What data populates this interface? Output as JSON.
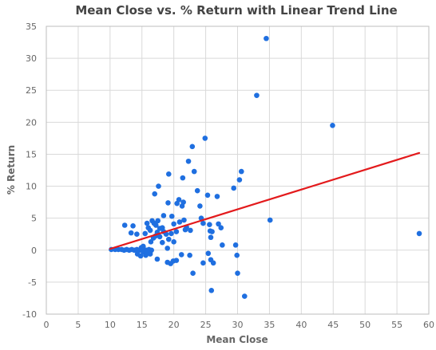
{
  "chart_data": {
    "type": "scatter",
    "title": "Mean Close vs. % Return with Linear Trend Line",
    "xlabel": "Mean Close",
    "ylabel": "% Return",
    "xlim": [
      0,
      60
    ],
    "ylim": [
      -10,
      35
    ],
    "xticks": [
      0,
      5,
      10,
      15,
      20,
      25,
      30,
      35,
      40,
      45,
      50,
      55,
      60
    ],
    "yticks": [
      -10,
      -5,
      0,
      5,
      10,
      15,
      20,
      25,
      30,
      35
    ],
    "grid": true,
    "colors": {
      "points": "#1f6fe0",
      "trend": "#e31a1c"
    },
    "trend_line": {
      "x": [
        10,
        58.5
      ],
      "y": [
        0.2,
        15.2
      ]
    },
    "points": [
      [
        10.2,
        0.1
      ],
      [
        10.8,
        0.1
      ],
      [
        11.3,
        0.1
      ],
      [
        11.8,
        0.1
      ],
      [
        12.2,
        0.0
      ],
      [
        12.6,
        0.1
      ],
      [
        13.0,
        0.0
      ],
      [
        13.4,
        0.1
      ],
      [
        13.8,
        0.0
      ],
      [
        14.2,
        0.1
      ],
      [
        14.6,
        0.0
      ],
      [
        15.0,
        0.0
      ],
      [
        15.3,
        0.1
      ],
      [
        15.7,
        0.0
      ],
      [
        16.1,
        0.1
      ],
      [
        16.5,
        0.0
      ],
      [
        14.3,
        -0.6
      ],
      [
        14.8,
        -0.9
      ],
      [
        15.2,
        -0.3
      ],
      [
        15.6,
        -0.8
      ],
      [
        15.9,
        -0.4
      ],
      [
        16.3,
        -0.6
      ],
      [
        12.3,
        3.9
      ],
      [
        13.3,
        2.7
      ],
      [
        13.6,
        3.8
      ],
      [
        14.2,
        2.5
      ],
      [
        15.5,
        2.6
      ],
      [
        15.8,
        4.2
      ],
      [
        16.0,
        3.5
      ],
      [
        16.3,
        3.1
      ],
      [
        16.6,
        4.6
      ],
      [
        16.9,
        4.2
      ],
      [
        17.2,
        3.9
      ],
      [
        17.5,
        4.6
      ],
      [
        17.8,
        3.4
      ],
      [
        18.2,
        3.5
      ],
      [
        16.4,
        1.3
      ],
      [
        16.8,
        1.9
      ],
      [
        17.1,
        2.2
      ],
      [
        17.4,
        2.8
      ],
      [
        17.8,
        2.1
      ],
      [
        18.2,
        1.2
      ],
      [
        18.4,
        2.9
      ],
      [
        18.8,
        2.5
      ],
      [
        19.2,
        1.7
      ],
      [
        19.6,
        2.6
      ],
      [
        20.0,
        1.3
      ],
      [
        20.4,
        2.9
      ],
      [
        17.0,
        8.8
      ],
      [
        17.6,
        10.0
      ],
      [
        18.4,
        5.4
      ],
      [
        19.1,
        7.4
      ],
      [
        19.2,
        11.9
      ],
      [
        19.7,
        5.3
      ],
      [
        20.0,
        4.1
      ],
      [
        20.5,
        7.3
      ],
      [
        20.8,
        7.9
      ],
      [
        21.3,
        6.9
      ],
      [
        21.5,
        7.5
      ],
      [
        21.6,
        4.7
      ],
      [
        21.4,
        11.3
      ],
      [
        21.8,
        3.2
      ],
      [
        22.3,
        13.9
      ],
      [
        22.6,
        3.1
      ],
      [
        22.9,
        16.2
      ],
      [
        23.2,
        12.3
      ],
      [
        23.7,
        9.3
      ],
      [
        24.1,
        6.9
      ],
      [
        24.3,
        5.0
      ],
      [
        24.6,
        4.2
      ],
      [
        24.9,
        17.5
      ],
      [
        25.3,
        8.6
      ],
      [
        25.6,
        4.0
      ],
      [
        25.7,
        3.0
      ],
      [
        26.0,
        2.9
      ],
      [
        25.8,
        2.0
      ],
      [
        26.8,
        8.4
      ],
      [
        27.0,
        4.1
      ],
      [
        27.4,
        3.5
      ],
      [
        27.6,
        0.8
      ],
      [
        29.4,
        9.7
      ],
      [
        30.3,
        11.0
      ],
      [
        30.6,
        12.3
      ],
      [
        19.0,
        0.3
      ],
      [
        19.5,
        -2.1
      ],
      [
        19.9,
        -1.7
      ],
      [
        20.4,
        -1.6
      ],
      [
        19.0,
        -1.9
      ],
      [
        21.2,
        -0.7
      ],
      [
        22.5,
        -0.8
      ],
      [
        23.0,
        -3.6
      ],
      [
        24.6,
        -2.0
      ],
      [
        25.4,
        -0.5
      ],
      [
        25.8,
        -1.5
      ],
      [
        26.2,
        -2.0
      ],
      [
        25.9,
        -6.3
      ],
      [
        17.4,
        -1.4
      ],
      [
        29.7,
        0.8
      ],
      [
        29.9,
        -0.8
      ],
      [
        30.0,
        -3.6
      ],
      [
        31.1,
        -7.2
      ],
      [
        33.0,
        24.2
      ],
      [
        34.5,
        33.1
      ],
      [
        35.1,
        4.7
      ],
      [
        44.9,
        19.5
      ],
      [
        58.5,
        2.6
      ],
      [
        14.9,
        0.4
      ],
      [
        15.2,
        0.6
      ],
      [
        20.9,
        4.4
      ],
      [
        22.0,
        3.6
      ]
    ]
  }
}
